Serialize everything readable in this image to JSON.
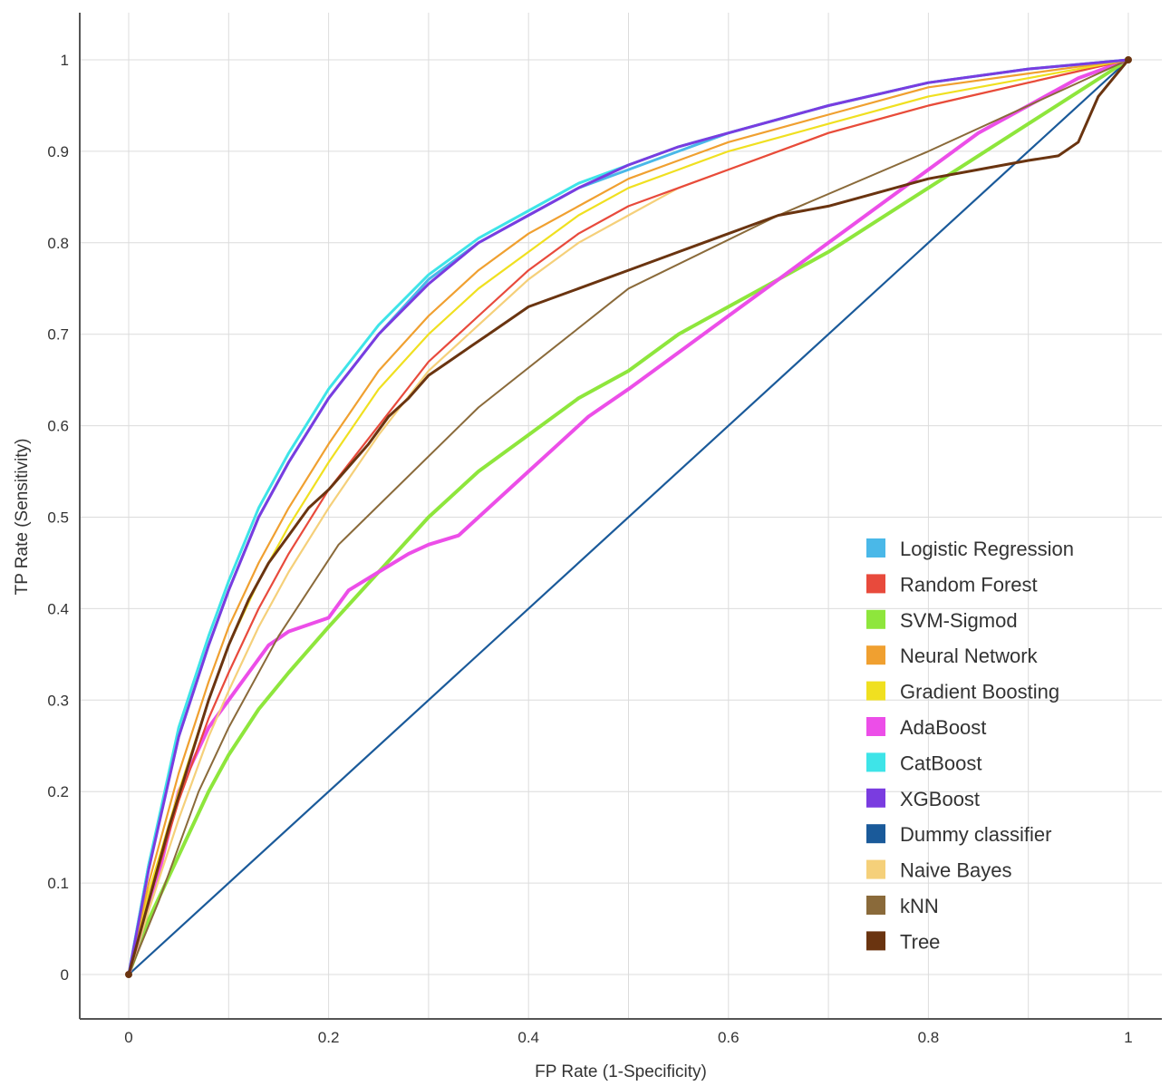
{
  "chart_data": {
    "type": "line",
    "title": "",
    "xlabel": "FP Rate (1-Specificity)",
    "ylabel": "TP Rate (Sensitivity)",
    "xlim": [
      0,
      1
    ],
    "ylim": [
      0,
      1
    ],
    "x_ticks": [
      "0",
      "0.2",
      "0.4",
      "0.6",
      "0.8",
      "1"
    ],
    "y_ticks": [
      "0",
      "0.1",
      "0.2",
      "0.3",
      "0.4",
      "0.5",
      "0.6",
      "0.7",
      "0.8",
      "0.9",
      "1"
    ],
    "grid": true,
    "legend_position": "bottom-right",
    "series": [
      {
        "name": "Logistic Regression",
        "color": "#4ab8e8",
        "x": [
          0,
          0.02,
          0.05,
          0.08,
          0.1,
          0.13,
          0.16,
          0.2,
          0.25,
          0.3,
          0.35,
          0.4,
          0.45,
          0.5,
          0.55,
          0.6,
          0.7,
          0.8,
          0.9,
          1
        ],
        "y": [
          0,
          0.12,
          0.26,
          0.36,
          0.42,
          0.5,
          0.56,
          0.63,
          0.7,
          0.76,
          0.8,
          0.83,
          0.86,
          0.88,
          0.9,
          0.92,
          0.95,
          0.975,
          0.99,
          1
        ]
      },
      {
        "name": "Random Forest",
        "color": "#e84a3c",
        "x": [
          0,
          0.02,
          0.05,
          0.08,
          0.1,
          0.13,
          0.16,
          0.2,
          0.25,
          0.3,
          0.35,
          0.4,
          0.45,
          0.5,
          0.55,
          0.6,
          0.7,
          0.8,
          0.9,
          1
        ],
        "y": [
          0,
          0.08,
          0.19,
          0.28,
          0.33,
          0.4,
          0.46,
          0.53,
          0.6,
          0.67,
          0.72,
          0.77,
          0.81,
          0.84,
          0.86,
          0.88,
          0.92,
          0.95,
          0.975,
          1
        ]
      },
      {
        "name": "SVM-Sigmod",
        "color": "#8ee63c",
        "x": [
          0,
          0.02,
          0.05,
          0.08,
          0.1,
          0.13,
          0.16,
          0.2,
          0.25,
          0.3,
          0.35,
          0.4,
          0.45,
          0.5,
          0.55,
          0.6,
          0.7,
          0.8,
          0.9,
          1
        ],
        "y": [
          0,
          0.06,
          0.13,
          0.2,
          0.24,
          0.29,
          0.33,
          0.38,
          0.44,
          0.5,
          0.55,
          0.59,
          0.63,
          0.66,
          0.7,
          0.73,
          0.79,
          0.86,
          0.93,
          1
        ]
      },
      {
        "name": "Neural Network",
        "color": "#f0a030",
        "x": [
          0,
          0.02,
          0.05,
          0.08,
          0.1,
          0.13,
          0.16,
          0.2,
          0.25,
          0.3,
          0.35,
          0.4,
          0.45,
          0.5,
          0.55,
          0.6,
          0.7,
          0.8,
          0.9,
          1
        ],
        "y": [
          0,
          0.1,
          0.22,
          0.32,
          0.38,
          0.45,
          0.51,
          0.58,
          0.66,
          0.72,
          0.77,
          0.81,
          0.84,
          0.87,
          0.89,
          0.91,
          0.94,
          0.97,
          0.985,
          1
        ]
      },
      {
        "name": "Gradient Boosting",
        "color": "#f0e020",
        "x": [
          0,
          0.02,
          0.05,
          0.08,
          0.1,
          0.13,
          0.16,
          0.2,
          0.25,
          0.3,
          0.35,
          0.4,
          0.45,
          0.5,
          0.55,
          0.6,
          0.7,
          0.8,
          0.9,
          1
        ],
        "y": [
          0,
          0.09,
          0.2,
          0.3,
          0.36,
          0.43,
          0.49,
          0.56,
          0.64,
          0.7,
          0.75,
          0.79,
          0.83,
          0.86,
          0.88,
          0.9,
          0.93,
          0.96,
          0.98,
          1
        ]
      },
      {
        "name": "AdaBoost",
        "color": "#ec4ee8",
        "x": [
          0,
          0.03,
          0.05,
          0.08,
          0.1,
          0.12,
          0.14,
          0.16,
          0.2,
          0.22,
          0.25,
          0.28,
          0.3,
          0.33,
          0.36,
          0.4,
          0.43,
          0.46,
          0.5,
          0.55,
          0.6,
          0.65,
          0.7,
          0.75,
          0.8,
          0.85,
          0.9,
          0.95,
          1
        ],
        "y": [
          0,
          0.11,
          0.2,
          0.27,
          0.3,
          0.33,
          0.36,
          0.375,
          0.39,
          0.42,
          0.44,
          0.46,
          0.47,
          0.48,
          0.51,
          0.55,
          0.58,
          0.61,
          0.64,
          0.68,
          0.72,
          0.76,
          0.8,
          0.84,
          0.88,
          0.92,
          0.95,
          0.98,
          1
        ]
      },
      {
        "name": "CatBoost",
        "color": "#3ee4e8",
        "x": [
          0,
          0.02,
          0.05,
          0.08,
          0.1,
          0.13,
          0.16,
          0.2,
          0.25,
          0.3,
          0.35,
          0.4,
          0.45,
          0.5,
          0.55,
          0.6,
          0.7,
          0.8,
          0.9,
          1
        ],
        "y": [
          0,
          0.12,
          0.27,
          0.37,
          0.43,
          0.51,
          0.57,
          0.64,
          0.71,
          0.765,
          0.805,
          0.835,
          0.865,
          0.885,
          0.905,
          0.92,
          0.95,
          0.975,
          0.99,
          1
        ]
      },
      {
        "name": "XGBoost",
        "color": "#7a3ce0",
        "x": [
          0,
          0.02,
          0.05,
          0.08,
          0.1,
          0.13,
          0.16,
          0.2,
          0.25,
          0.3,
          0.35,
          0.4,
          0.45,
          0.5,
          0.55,
          0.6,
          0.7,
          0.8,
          0.9,
          1
        ],
        "y": [
          0,
          0.115,
          0.26,
          0.36,
          0.42,
          0.5,
          0.56,
          0.63,
          0.7,
          0.755,
          0.8,
          0.83,
          0.86,
          0.885,
          0.905,
          0.92,
          0.95,
          0.975,
          0.99,
          1
        ]
      },
      {
        "name": "Dummy classifier",
        "color": "#1a5a9a",
        "x": [
          0,
          1
        ],
        "y": [
          0,
          1
        ]
      },
      {
        "name": "Naive Bayes",
        "color": "#f5d07a",
        "x": [
          0,
          0.02,
          0.05,
          0.08,
          0.1,
          0.13,
          0.16,
          0.2,
          0.25,
          0.3,
          0.35,
          0.4,
          0.45,
          0.5,
          0.55,
          0.6,
          0.7,
          0.8,
          0.9,
          1
        ],
        "y": [
          0,
          0.07,
          0.17,
          0.26,
          0.31,
          0.38,
          0.44,
          0.51,
          0.59,
          0.66,
          0.71,
          0.76,
          0.8,
          0.83,
          0.86,
          0.88,
          0.92,
          0.95,
          0.975,
          1
        ]
      },
      {
        "name": "kNN",
        "color": "#8a6a3a",
        "x": [
          0,
          0.03,
          0.07,
          0.1,
          0.15,
          0.21,
          0.35,
          0.5,
          0.65,
          0.8,
          0.9,
          1
        ],
        "y": [
          0,
          0.08,
          0.2,
          0.27,
          0.37,
          0.47,
          0.62,
          0.75,
          0.83,
          0.9,
          0.95,
          1
        ]
      },
      {
        "name": "Tree",
        "color": "#6a3410",
        "x": [
          0,
          0.02,
          0.04,
          0.06,
          0.08,
          0.1,
          0.12,
          0.14,
          0.16,
          0.18,
          0.2,
          0.22,
          0.24,
          0.26,
          0.28,
          0.3,
          0.32,
          0.34,
          0.36,
          0.38,
          0.4,
          0.45,
          0.5,
          0.55,
          0.6,
          0.65,
          0.7,
          0.75,
          0.8,
          0.85,
          0.9,
          0.93,
          0.95,
          0.97,
          1
        ],
        "y": [
          0,
          0.08,
          0.16,
          0.23,
          0.3,
          0.36,
          0.41,
          0.45,
          0.48,
          0.51,
          0.53,
          0.555,
          0.58,
          0.61,
          0.63,
          0.655,
          0.67,
          0.685,
          0.7,
          0.715,
          0.73,
          0.75,
          0.77,
          0.79,
          0.81,
          0.83,
          0.84,
          0.855,
          0.87,
          0.88,
          0.89,
          0.895,
          0.91,
          0.96,
          1
        ]
      }
    ]
  }
}
